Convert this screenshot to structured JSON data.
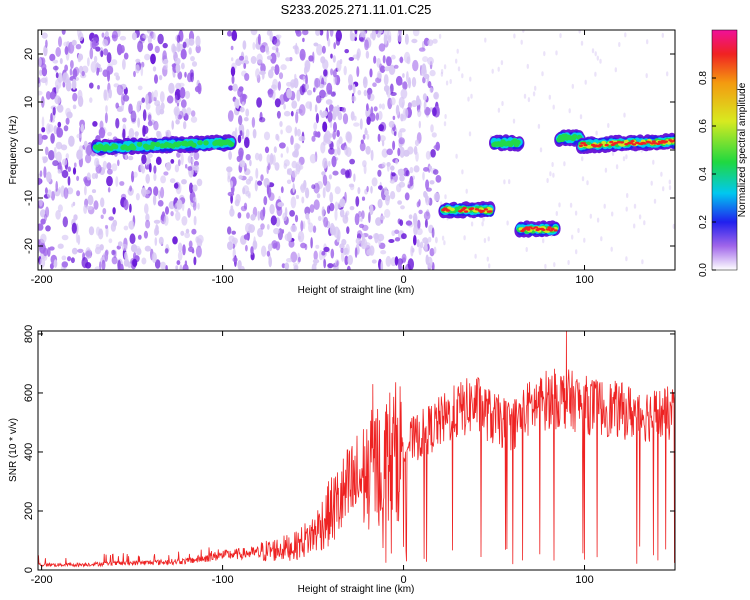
{
  "title": "S233.2025.271.11.01.C25",
  "colors": {
    "snr_line": "#ee2222",
    "colormap": [
      "#ffffff",
      "#d8c8f4",
      "#a066ea",
      "#6a1ad8",
      "#2222ee",
      "#00d0e8",
      "#22d84a",
      "#ccea22",
      "#f4a011",
      "#f02222",
      "#f0109a"
    ]
  },
  "chart_data": [
    {
      "type": "heatmap",
      "title": "S233.2025.271.11.01.C25",
      "xlabel": "Height of straight line (km)",
      "ylabel": "Frequency (Hz)",
      "xlim": [
        -202,
        150
      ],
      "ylim": [
        -25,
        25
      ],
      "xticks": [
        -200,
        -100,
        0,
        100
      ],
      "xtick_labels": [
        "-200",
        "-100",
        "0",
        "100"
      ],
      "yticks": [
        -20,
        -10,
        0,
        10,
        20
      ],
      "ytick_labels": [
        "-20",
        "-10",
        "0",
        "10",
        "20"
      ],
      "noise_regions_km": [
        [
          -202,
          -112
        ],
        [
          -97,
          20
        ]
      ],
      "features": [
        {
          "x_start": -170,
          "x_end": -95,
          "freq_start": 0.5,
          "freq_end": 1.5,
          "peak_amplitude": 0.5
        },
        {
          "x_start": 22,
          "x_end": 48,
          "freq_start": -12.5,
          "freq_end": -12.5,
          "peak_amplitude": 0.9
        },
        {
          "x_start": 50,
          "x_end": 64,
          "freq_start": 1.5,
          "freq_end": 1.5,
          "peak_amplitude": 0.45
        },
        {
          "x_start": 64,
          "x_end": 84,
          "freq_start": -16.5,
          "freq_end": -16.5,
          "peak_amplitude": 0.9
        },
        {
          "x_start": 86,
          "x_end": 98,
          "freq_start": 2.5,
          "freq_end": 2.5,
          "peak_amplitude": 0.5
        },
        {
          "x_start": 98,
          "x_end": 150,
          "freq_start": 1.0,
          "freq_end": 1.8,
          "peak_amplitude": 0.95
        }
      ],
      "colorbar": {
        "label": "Normalized spectral amplitude",
        "range": [
          0,
          1
        ],
        "ticks": [
          0.0,
          0.2,
          0.4,
          0.6,
          0.8
        ],
        "tick_labels": [
          "0.0",
          "0.2",
          "0.4",
          "0.6",
          "0.8"
        ]
      }
    },
    {
      "type": "line",
      "xlabel": "Height of straight line (km)",
      "ylabel": "SNR (10 * v/v)",
      "xlim": [
        -202,
        150
      ],
      "ylim": [
        0,
        810
      ],
      "xticks": [
        -200,
        -100,
        0,
        100
      ],
      "xtick_labels": [
        "-200",
        "-100",
        "0",
        "100"
      ],
      "yticks": [
        0,
        200,
        400,
        600,
        800
      ],
      "ytick_labels": [
        "0",
        "200",
        "400",
        "600",
        "800"
      ],
      "series": [
        {
          "name": "SNR",
          "x": [
            -202,
            -180,
            -160,
            -140,
            -120,
            -110,
            -100,
            -90,
            -80,
            -70,
            -60,
            -50,
            -40,
            -30,
            -20,
            -10,
            0,
            10,
            20,
            30,
            40,
            50,
            60,
            70,
            80,
            90,
            100,
            110,
            120,
            130,
            140,
            150
          ],
          "y": [
            18,
            18,
            22,
            25,
            30,
            40,
            50,
            55,
            60,
            70,
            80,
            120,
            200,
            270,
            330,
            380,
            420,
            460,
            500,
            540,
            565,
            510,
            490,
            550,
            580,
            580,
            560,
            550,
            540,
            530,
            525,
            530
          ],
          "spikes": [
            {
              "x": -17,
              "y": 630
            },
            {
              "x": 90,
              "y": 810
            },
            {
              "x": 84,
              "y": 665
            }
          ]
        }
      ]
    }
  ]
}
